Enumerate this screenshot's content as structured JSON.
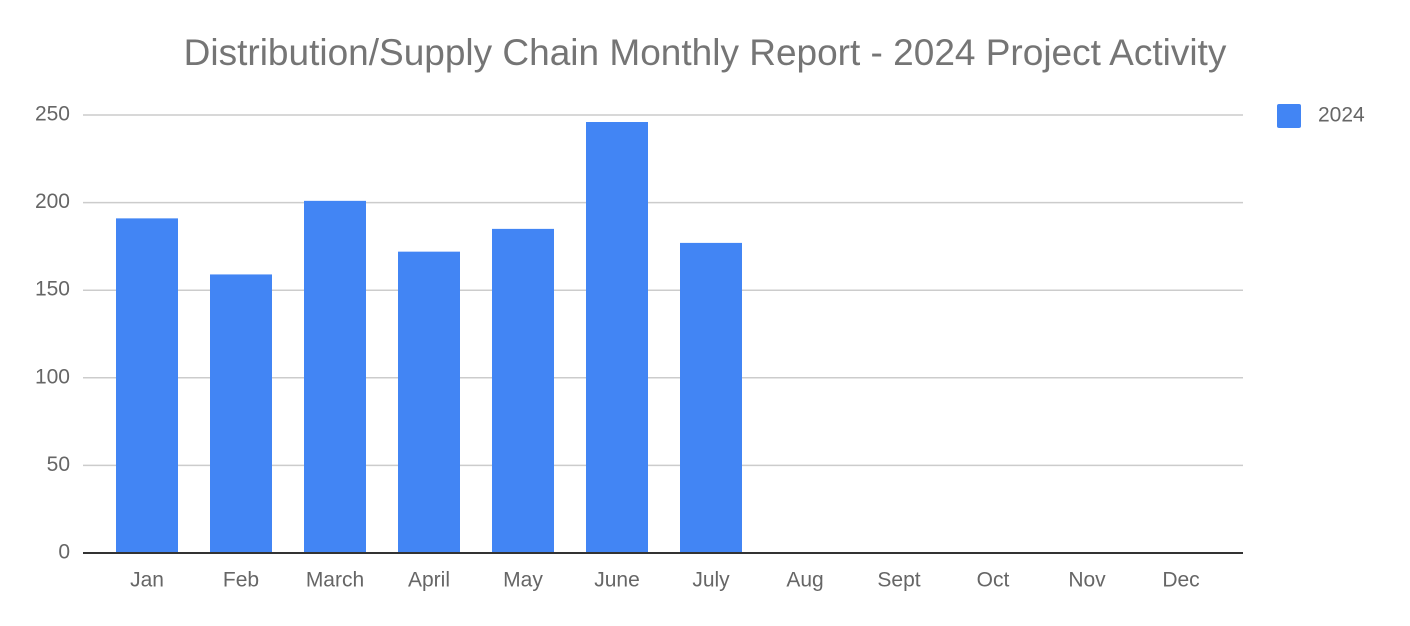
{
  "chart_data": {
    "type": "bar",
    "title": "Distribution/Supply Chain Monthly Report - 2024 Project Activity",
    "categories": [
      "Jan",
      "Feb",
      "March",
      "April",
      "May",
      "June",
      "July",
      "Aug",
      "Sept",
      "Oct",
      "Nov",
      "Dec"
    ],
    "series": [
      {
        "name": "2024",
        "color": "#4285f4",
        "values": [
          191,
          159,
          201,
          172,
          185,
          246,
          177,
          null,
          null,
          null,
          null,
          null
        ]
      }
    ],
    "ylim": [
      0,
      250
    ],
    "yticks": [
      0,
      50,
      100,
      150,
      200,
      250
    ],
    "grid": true,
    "legend": "right"
  }
}
